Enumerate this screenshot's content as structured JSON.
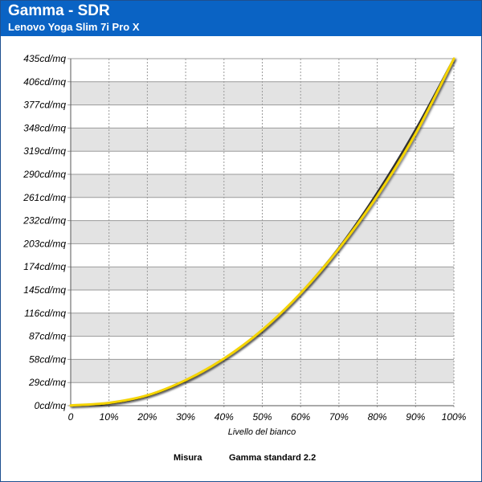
{
  "header": {
    "title": "Gamma - SDR",
    "subtitle": "Lenovo Yoga Slim 7i Pro X"
  },
  "chart_data": {
    "type": "line",
    "title": "Gamma - SDR",
    "subtitle": "Lenovo Yoga Slim 7i Pro X",
    "xlabel": "Livello del bianco",
    "ylabel": "",
    "x_unit": "%",
    "y_unit": "cd/mq",
    "xlim": [
      0,
      100
    ],
    "ylim": [
      0,
      435
    ],
    "x_ticks": [
      0,
      10,
      20,
      30,
      40,
      50,
      60,
      70,
      80,
      90,
      100
    ],
    "x_tick_labels": [
      "0",
      "10%",
      "20%",
      "30%",
      "40%",
      "50%",
      "60%",
      "70%",
      "80%",
      "90%",
      "100%"
    ],
    "y_ticks": [
      0,
      29,
      58,
      87,
      116,
      145,
      174,
      203,
      232,
      261,
      290,
      319,
      348,
      377,
      406,
      435
    ],
    "y_tick_labels": [
      "0cd/mq",
      "29cd/mq",
      "58cd/mq",
      "87cd/mq",
      "116cd/mq",
      "145cd/mq",
      "174cd/mq",
      "203cd/mq",
      "232cd/mq",
      "261cd/mq",
      "290cd/mq",
      "319cd/mq",
      "348cd/mq",
      "377cd/mq",
      "406cd/mq",
      "435cd/mq"
    ],
    "grid": true,
    "legend_position": "bottom",
    "series": [
      {
        "name": "Misura",
        "color": "#f5d400",
        "x": [
          0,
          10,
          20,
          30,
          40,
          50,
          60,
          70,
          80,
          90,
          100
        ],
        "values": [
          0.3,
          3.5,
          13,
          32,
          59,
          95,
          141,
          197,
          263,
          341,
          435
        ]
      },
      {
        "name": "Gamma standard 2.2",
        "color": "#333333",
        "x": [
          0,
          10,
          20,
          30,
          40,
          50,
          60,
          70,
          80,
          90,
          100
        ],
        "values": [
          0,
          2.7,
          12.3,
          31.3,
          58.9,
          94.4,
          141,
          198,
          267,
          346,
          435
        ]
      }
    ]
  }
}
